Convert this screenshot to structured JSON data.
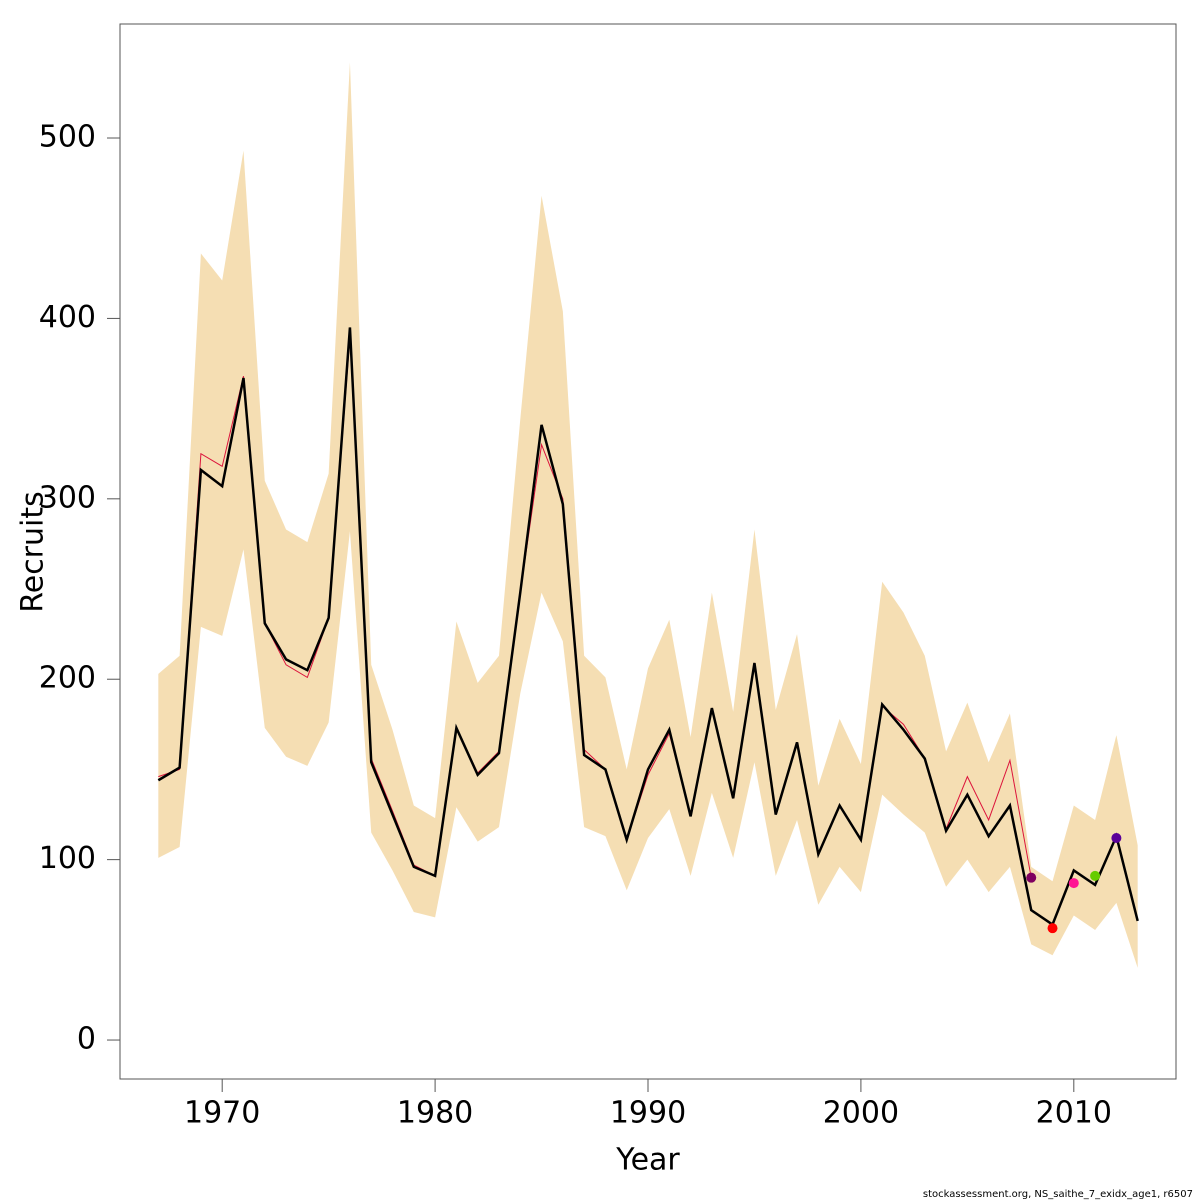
{
  "chart_data": {
    "type": "line",
    "x_label": "Year",
    "y_label": "Recruits",
    "footer": "stockassessment.org, NS_saithe_7_exidx_age1, r6507",
    "x": [
      1967,
      1968,
      1969,
      1970,
      1971,
      1972,
      1973,
      1974,
      1975,
      1976,
      1977,
      1978,
      1979,
      1980,
      1981,
      1982,
      1983,
      1984,
      1985,
      1986,
      1987,
      1988,
      1989,
      1990,
      1991,
      1992,
      1993,
      1994,
      1995,
      1996,
      1997,
      1998,
      1999,
      2000,
      2001,
      2002,
      2003,
      2004,
      2005,
      2006,
      2007,
      2008,
      2009,
      2010,
      2011,
      2012,
      2013
    ],
    "band": {
      "color": "#f5deb3",
      "upper": [
        203,
        213,
        436,
        421,
        493,
        310,
        283,
        276,
        314,
        542,
        208,
        172,
        130,
        123,
        232,
        198,
        213,
        344,
        468,
        404,
        213,
        201,
        150,
        206,
        233,
        168,
        248,
        182,
        283,
        183,
        225,
        141,
        178,
        153,
        254,
        237,
        213,
        160,
        187,
        154,
        181,
        96,
        88,
        130,
        122,
        169,
        108
      ],
      "lower": [
        101,
        107,
        229,
        224,
        272,
        173,
        157,
        152,
        176,
        282,
        115,
        94,
        71,
        68,
        129,
        110,
        118,
        192,
        248,
        221,
        118,
        113,
        83,
        112,
        128,
        91,
        137,
        101,
        154,
        91,
        122,
        75,
        96,
        82,
        136,
        125,
        115,
        85,
        100,
        82,
        96,
        53,
        47,
        69,
        61,
        76,
        40
      ]
    },
    "series": [
      {
        "color": "#dc143c",
        "width": 1,
        "values": [
          146,
          150,
          325,
          318,
          368,
          231,
          208,
          201,
          234,
          390,
          156,
          127,
          97,
          91,
          173,
          148,
          160,
          248,
          330,
          300,
          161,
          150,
          111,
          147,
          170,
          124,
          183,
          134,
          209,
          126,
          165,
          103,
          130,
          111,
          185,
          175,
          156,
          117,
          146,
          122,
          155,
          90,
          null,
          null,
          null,
          null,
          null
        ]
      },
      {
        "color": "#000000",
        "width": 2.5,
        "values": [
          144,
          151,
          316,
          307,
          367,
          231,
          211,
          205,
          234,
          395,
          154,
          125,
          96,
          91,
          173,
          147,
          159,
          248,
          341,
          297,
          158,
          150,
          111,
          150,
          172,
          124,
          184,
          134,
          209,
          125,
          165,
          103,
          130,
          111,
          186,
          172,
          156,
          116,
          136,
          113,
          130,
          72,
          64,
          94,
          86,
          113,
          66
        ]
      }
    ],
    "points": {
      "x": [
        2008,
        2009,
        2010,
        2011,
        2012
      ],
      "values": [
        90,
        62,
        87,
        91,
        112
      ],
      "colors": [
        "#800060",
        "#ff0000",
        "#ff1493",
        "#66cc00",
        "#5a0099"
      ]
    },
    "xlim": [
      1965.2,
      2014.8
    ],
    "ylim": [
      -21.6,
      563.2
    ],
    "xticks": [
      1970,
      1980,
      1990,
      2000,
      2010
    ],
    "yticks": [
      0,
      100,
      200,
      300,
      400,
      500
    ]
  }
}
